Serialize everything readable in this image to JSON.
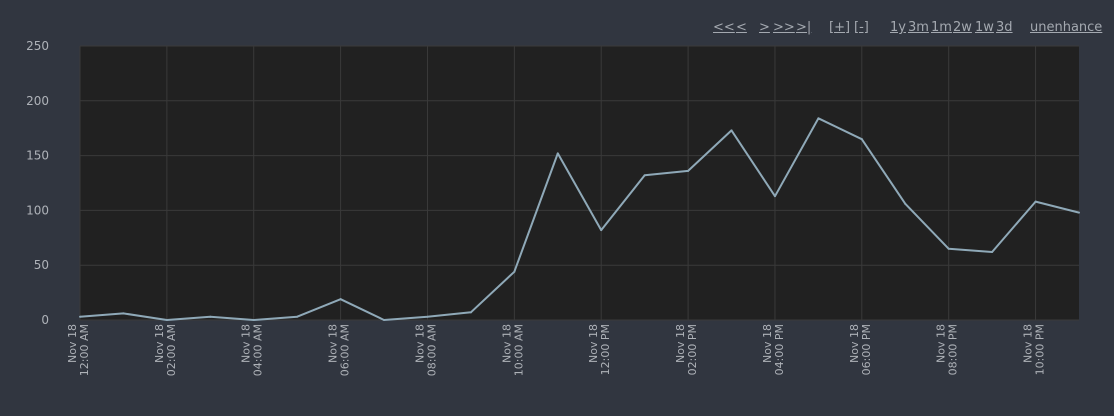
{
  "nav": {
    "first": "<<",
    "prev": "<",
    "next": ">",
    "next_page": ">>",
    "last": ">|",
    "zoom_in": "[+]",
    "zoom_out": "[-]",
    "range_1y": "1y",
    "range_3m": "3m",
    "range_1m": "1m",
    "range_2w": "2w",
    "range_1w": "1w",
    "range_3d": "3d",
    "unenhance": "unenhance"
  },
  "chart_data": {
    "type": "line",
    "title": "",
    "xlabel": "",
    "ylabel": "",
    "ylim": [
      0,
      250
    ],
    "yticks": [
      0,
      50,
      100,
      150,
      200,
      250
    ],
    "grid": true,
    "xticks": [
      {
        "x": 0,
        "line1": "Nov 18",
        "line2": "12:00 AM"
      },
      {
        "x": 2,
        "line1": "Nov 18",
        "line2": "02:00 AM"
      },
      {
        "x": 4,
        "line1": "Nov 18",
        "line2": "04:00 AM"
      },
      {
        "x": 6,
        "line1": "Nov 18",
        "line2": "06:00 AM"
      },
      {
        "x": 8,
        "line1": "Nov 18",
        "line2": "08:00 AM"
      },
      {
        "x": 10,
        "line1": "Nov 18",
        "line2": "10:00 AM"
      },
      {
        "x": 12,
        "line1": "Nov 18",
        "line2": "12:00 PM"
      },
      {
        "x": 14,
        "line1": "Nov 18",
        "line2": "02:00 PM"
      },
      {
        "x": 16,
        "line1": "Nov 18",
        "line2": "04:00 PM"
      },
      {
        "x": 18,
        "line1": "Nov 18",
        "line2": "06:00 PM"
      },
      {
        "x": 20,
        "line1": "Nov 18",
        "line2": "08:00 PM"
      },
      {
        "x": 22,
        "line1": "Nov 18",
        "line2": "10:00 PM"
      }
    ],
    "series": [
      {
        "color": "#8fa9b8",
        "x": [
          0,
          1,
          2,
          3,
          4,
          5,
          6,
          7,
          8,
          9,
          10,
          11,
          12,
          13,
          14,
          15,
          16,
          17,
          18,
          19,
          20,
          21,
          22,
          23
        ],
        "values": [
          3,
          6,
          0,
          3,
          0,
          3,
          19,
          0,
          3,
          7,
          44,
          152,
          82,
          132,
          136,
          173,
          113,
          184,
          165,
          106,
          65,
          62,
          108,
          98
        ]
      }
    ],
    "colors": {
      "plot_bg": "#212121",
      "page_bg": "#313640",
      "grid": "#3a3a3a",
      "text": "#aeb2b8"
    }
  }
}
